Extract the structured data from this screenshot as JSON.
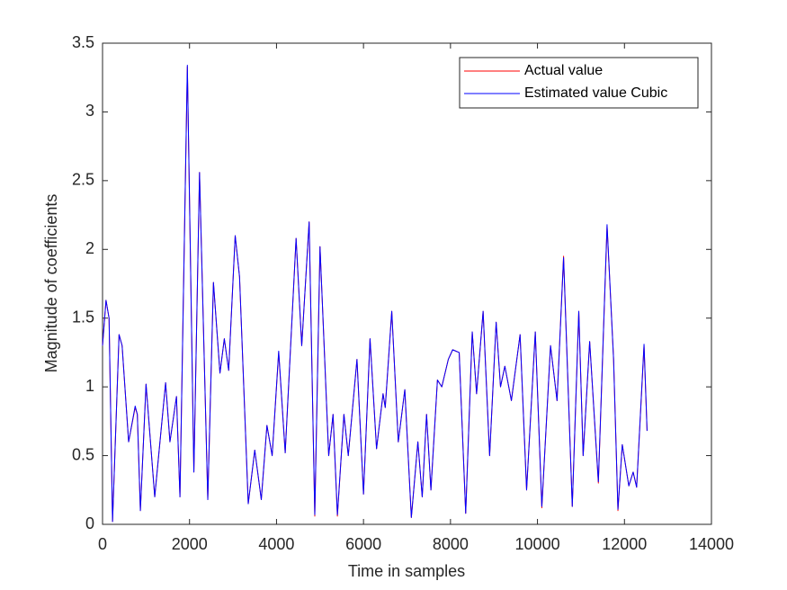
{
  "chart_data": {
    "type": "line",
    "xlabel": "Time in samples",
    "ylabel": "Magnitude of coefficients",
    "xlim": [
      0,
      14000
    ],
    "ylim": [
      0,
      3.5
    ],
    "xticks": [
      0,
      2000,
      4000,
      6000,
      8000,
      10000,
      12000,
      14000
    ],
    "yticks": [
      0,
      0.5,
      1,
      1.5,
      2,
      2.5,
      3,
      3.5
    ],
    "legend": "upper right",
    "x": [
      0,
      80,
      150,
      230,
      380,
      450,
      600,
      750,
      800,
      870,
      1000,
      1200,
      1450,
      1550,
      1700,
      1780,
      1950,
      2100,
      2230,
      2420,
      2550,
      2700,
      2800,
      2900,
      3050,
      3150,
      3350,
      3500,
      3650,
      3780,
      3900,
      4050,
      4200,
      4450,
      4580,
      4750,
      4880,
      5000,
      5200,
      5300,
      5400,
      5550,
      5650,
      5850,
      6000,
      6150,
      6300,
      6450,
      6500,
      6650,
      6800,
      6950,
      7100,
      7250,
      7350,
      7450,
      7550,
      7700,
      7800,
      7950,
      8050,
      8200,
      8350,
      8500,
      8600,
      8750,
      8900,
      9050,
      9150,
      9250,
      9400,
      9600,
      9750,
      9950,
      10100,
      10300,
      10450,
      10600,
      10800,
      10950,
      11050,
      11200,
      11400,
      11600,
      11750,
      11850,
      11950,
      12100,
      12200,
      12280,
      12450,
      12520
    ],
    "series": [
      {
        "name": "Actual value",
        "color": "#ff0000",
        "values": [
          1.3,
          1.63,
          1.5,
          0.02,
          1.38,
          1.3,
          0.6,
          0.85,
          0.8,
          0.1,
          1.02,
          0.2,
          1.03,
          0.6,
          0.93,
          0.2,
          3.33,
          0.38,
          2.56,
          0.18,
          1.76,
          1.1,
          1.35,
          1.12,
          2.1,
          1.8,
          0.15,
          0.54,
          0.18,
          0.72,
          0.5,
          1.25,
          0.52,
          2.08,
          1.3,
          2.2,
          0.06,
          2.02,
          0.5,
          0.8,
          0.06,
          0.8,
          0.5,
          1.2,
          0.22,
          1.35,
          0.55,
          0.95,
          0.85,
          1.55,
          0.6,
          0.98,
          0.05,
          0.6,
          0.2,
          0.8,
          0.25,
          1.05,
          1.0,
          1.2,
          1.27,
          1.25,
          0.08,
          1.4,
          0.95,
          1.55,
          0.5,
          1.47,
          1.0,
          1.15,
          0.9,
          1.38,
          0.25,
          1.4,
          0.12,
          1.3,
          0.9,
          1.95,
          0.13,
          1.55,
          0.5,
          1.33,
          0.3,
          2.17,
          1.2,
          0.1,
          0.58,
          0.28,
          0.38,
          0.27,
          1.3,
          0.68
        ]
      },
      {
        "name": "Estimated value Cubic",
        "color": "#0000ff",
        "values": [
          1.3,
          1.63,
          1.5,
          0.02,
          1.38,
          1.3,
          0.6,
          0.86,
          0.8,
          0.1,
          1.02,
          0.2,
          1.03,
          0.6,
          0.93,
          0.2,
          3.34,
          0.38,
          2.56,
          0.18,
          1.76,
          1.1,
          1.35,
          1.12,
          2.1,
          1.8,
          0.15,
          0.54,
          0.18,
          0.72,
          0.5,
          1.26,
          0.52,
          2.08,
          1.3,
          2.2,
          0.07,
          2.02,
          0.5,
          0.8,
          0.07,
          0.8,
          0.5,
          1.2,
          0.22,
          1.35,
          0.55,
          0.95,
          0.85,
          1.55,
          0.6,
          0.98,
          0.05,
          0.6,
          0.2,
          0.8,
          0.25,
          1.05,
          1.0,
          1.2,
          1.27,
          1.25,
          0.08,
          1.4,
          0.95,
          1.55,
          0.5,
          1.47,
          1.0,
          1.15,
          0.9,
          1.38,
          0.25,
          1.4,
          0.13,
          1.3,
          0.9,
          1.94,
          0.13,
          1.55,
          0.5,
          1.33,
          0.31,
          2.18,
          1.2,
          0.11,
          0.58,
          0.28,
          0.38,
          0.27,
          1.31,
          0.68
        ]
      }
    ]
  }
}
